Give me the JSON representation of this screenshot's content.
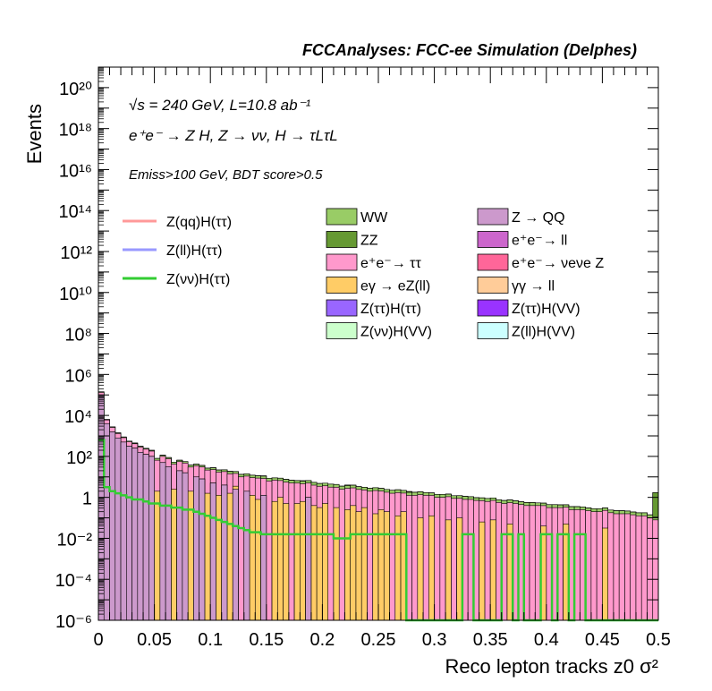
{
  "header_title": "FCCAnalyses: FCC-ee Simulation (Delphes)",
  "annotations": {
    "line1": "√s = 240 GeV, L=10.8 ab⁻¹",
    "line2": "e⁺e⁻ → Z H, Z → νν, H → τLτL",
    "line3": "Emiss>100 GeV, BDT score>0.5"
  },
  "legend": {
    "signals": [
      {
        "label": "Z(qq)H(ττ)",
        "color": "#ff9999"
      },
      {
        "label": "Z(ll)H(ττ)",
        "color": "#9999ff"
      },
      {
        "label": "Z(νν)H(ττ)",
        "color": "#33cc33"
      }
    ],
    "backgrounds_col1": [
      {
        "label": "WW",
        "color": "#99cc66"
      },
      {
        "label": "ZZ",
        "color": "#669933"
      },
      {
        "label": "e⁺e⁻→ ττ",
        "color": "#ff99cc"
      },
      {
        "label": "eγ → eZ(ll)",
        "color": "#ffcc66"
      },
      {
        "label": "Z(ττ)H(ττ)",
        "color": "#9966ff"
      },
      {
        "label": "Z(νν)H(VV)",
        "color": "#ccffcc"
      }
    ],
    "backgrounds_col2": [
      {
        "label": "Z → QQ",
        "color": "#cc99cc"
      },
      {
        "label": "e⁺e⁻→ ll",
        "color": "#cc66cc"
      },
      {
        "label": "e⁺e⁻→ νeνe Z",
        "color": "#ff6699"
      },
      {
        "label": "γγ → ll",
        "color": "#ffcc99"
      },
      {
        "label": "Z(ττ)H(VV)",
        "color": "#9933ff"
      },
      {
        "label": "Z(ll)H(VV)",
        "color": "#ccffff"
      }
    ]
  },
  "chart_data": {
    "type": "histogram-stacked",
    "xlabel": "Reco lepton tracks z0 σ²",
    "ylabel": "Events",
    "xlim": [
      0,
      0.5
    ],
    "ylim": [
      1e-06,
      1e+21
    ],
    "yscale": "log",
    "xticks": [
      "0",
      "0.05",
      "0.1",
      "0.15",
      "0.2",
      "0.25",
      "0.3",
      "0.35",
      "0.4",
      "0.45",
      "0.5"
    ],
    "yticks": [
      "10⁻⁶",
      "10⁻⁴",
      "10⁻²",
      "1",
      "10²",
      "10⁴",
      "10⁶",
      "10⁸",
      "10¹⁰",
      "10¹²",
      "10¹⁴",
      "10¹⁶",
      "10¹⁸",
      "10²⁰"
    ],
    "nbins": 100,
    "series": [
      {
        "name": "Z → QQ",
        "color": "#cc99cc",
        "values_log10": [
          5,
          3.6,
          3.2,
          2.9,
          2.7,
          2.5,
          2.4,
          2.2,
          2.1,
          2.0,
          -6,
          1.7,
          1.5,
          -6,
          1.3,
          1.2,
          -6,
          1.0,
          0.9,
          -6,
          0.7,
          -6,
          0.6,
          -6,
          0.4,
          -6,
          0.3,
          -6,
          -6,
          0.1,
          -6,
          -6,
          -6,
          -6,
          -6,
          -6,
          -6,
          0,
          -6,
          -6,
          -6,
          -6,
          -6,
          -6,
          -6,
          -6,
          -6,
          -6,
          -6,
          -6,
          -6,
          -6,
          -6,
          -6,
          -6,
          -6,
          -6,
          -6,
          -6,
          -6,
          -6,
          -6,
          -6,
          -6,
          -6,
          -6,
          -6,
          -6,
          -6,
          -6,
          -6,
          -6,
          -6,
          -6,
          -6,
          -6,
          -6,
          -6,
          -6,
          -6,
          -6,
          -6,
          -6,
          -6,
          -6,
          -6,
          -6,
          -6,
          -6,
          -6,
          -6,
          -6,
          -6,
          -6,
          -6,
          -6,
          -6,
          -6,
          -6,
          -6
        ]
      },
      {
        "name": "eγ → eZ(ll)",
        "color": "#ffcc66",
        "values_log10": [
          -6,
          -6,
          -6,
          -6,
          -6,
          0.3,
          0.5,
          -6,
          -6,
          0.2,
          0.3,
          -6,
          -6,
          0.4,
          -6,
          -6,
          0.3,
          -6,
          -6,
          0.2,
          -6,
          0.1,
          -6,
          0.2,
          0.0,
          -6,
          -6,
          0.1,
          -0.1,
          -6,
          -6,
          -0.2,
          0.0,
          -0.3,
          -6,
          -0.3,
          -0.2,
          -6,
          -0.4,
          -0.5,
          -0.3,
          -6,
          -0.5,
          -6,
          -0.6,
          -0.4,
          -0.7,
          -0.5,
          -6,
          -0.8,
          -0.6,
          -0.7,
          -6,
          -0.9,
          -0.7,
          -6,
          -6,
          -1.0,
          -6,
          -0.9,
          -6,
          -6,
          -1.1,
          -6,
          -1.0,
          -6,
          -6,
          -6,
          -1.2,
          -6,
          -1.1,
          -6,
          -6,
          -1.3,
          -6,
          -6,
          -6,
          -6,
          -6,
          -1.4,
          -6,
          -6,
          -6,
          -1.3,
          -6,
          -6,
          -6,
          -6,
          -6,
          -6,
          -1.5,
          -6,
          -6,
          -6,
          -6,
          -6,
          -6,
          -6,
          -6,
          -6
        ]
      },
      {
        "name": "e⁺e⁻→ ττ",
        "color": "#ff99cc",
        "values_log10": [
          4.5,
          3.3,
          3.0,
          2.7,
          2.5,
          2.3,
          2.2,
          2.1,
          2.0,
          1.9,
          1.8,
          1.7,
          1.65,
          1.6,
          1.55,
          1.5,
          1.45,
          1.4,
          1.35,
          1.3,
          1.25,
          1.2,
          1.15,
          1.1,
          1.05,
          1.0,
          0.95,
          0.9,
          0.9,
          0.85,
          0.8,
          0.8,
          0.75,
          0.7,
          0.7,
          0.65,
          0.6,
          0.6,
          0.55,
          0.5,
          0.5,
          0.5,
          0.45,
          0.4,
          0.4,
          0.4,
          0.35,
          0.3,
          0.3,
          0.3,
          0.25,
          0.2,
          0.2,
          0.2,
          0.15,
          0.1,
          0.1,
          0.1,
          0.1,
          0.05,
          0.0,
          0.0,
          0.0,
          -0.05,
          -0.1,
          -0.1,
          -0.1,
          -0.15,
          -0.2,
          -0.2,
          -0.2,
          -0.25,
          -0.3,
          -0.3,
          -0.3,
          -0.35,
          -0.4,
          -0.4,
          -0.4,
          -0.45,
          -0.5,
          -0.5,
          -0.5,
          -0.55,
          -0.6,
          -0.6,
          -0.6,
          -0.65,
          -0.7,
          -0.7,
          -0.7,
          -0.75,
          -0.8,
          -0.8,
          -0.8,
          -0.85,
          -0.9,
          -0.9,
          -1.0,
          -1.1
        ]
      },
      {
        "name": "WW",
        "color": "#99cc66",
        "values_log10": [
          4.0,
          2.5,
          2.2,
          2.0,
          1.8,
          1.6,
          1.5,
          1.4,
          1.3,
          1.2,
          1.15,
          1.1,
          1.05,
          1.0,
          0.95,
          0.9,
          0.85,
          0.8,
          0.75,
          0.7,
          0.7,
          0.65,
          0.6,
          0.6,
          0.55,
          0.5,
          0.5,
          0.45,
          0.4,
          0.4,
          0.35,
          0.3,
          0.3,
          0.3,
          0.25,
          0.2,
          0.2,
          0.2,
          0.15,
          0.1,
          0.1,
          0.1,
          0.05,
          0.0,
          0.0,
          0.0,
          -0.05,
          -0.1,
          -0.1,
          -0.1,
          -0.15,
          -0.2,
          -0.2,
          -0.2,
          -0.25,
          -0.3,
          -0.3,
          -0.3,
          -0.35,
          -0.4,
          -0.4,
          -0.4,
          -0.45,
          -0.5,
          -0.5,
          -0.5,
          -0.55,
          -0.6,
          -0.6,
          -0.6,
          -0.65,
          -0.7,
          -0.7,
          -0.7,
          -0.75,
          -0.8,
          -0.8,
          -0.8,
          -0.85,
          -0.9,
          -0.9,
          -0.9,
          -0.95,
          -1.0,
          -1.0,
          -1.0,
          -1.05,
          -1.1,
          -1.1,
          -1.1,
          -1.15,
          -1.2,
          -1.2,
          -1.2,
          -1.25,
          -1.3,
          -1.3,
          -1.3,
          -1.4,
          -1.5
        ]
      },
      {
        "name": "ZZ",
        "color": "#669933",
        "values_log10": [
          2.0,
          1.0,
          0.7,
          -6,
          0.5,
          -6,
          0.3,
          -6,
          0.1,
          -6,
          -6,
          -0.1,
          -6,
          -6,
          -0.2,
          -6,
          -6,
          -6,
          -0.3,
          -6,
          -6,
          -6,
          -6,
          -0.4,
          -6,
          -6,
          -6,
          -6,
          -6,
          -0.5,
          -6,
          -6,
          -6,
          -6,
          -6,
          -6,
          -0.6,
          -6,
          -6,
          -6,
          -6,
          -6,
          -6,
          -6,
          -0.7,
          -6,
          -6,
          -6,
          -6,
          -6,
          -6,
          -6,
          -6,
          -6,
          -6,
          -0.8,
          -6,
          -6,
          -6,
          -6,
          -6,
          -6,
          -6,
          -6,
          -6,
          -6,
          -6,
          -6,
          -6,
          -6,
          -6,
          -6,
          -6,
          -6,
          -6,
          -6,
          -6,
          -6,
          -6,
          -6,
          -6,
          -6,
          -6,
          -6,
          -6,
          -6,
          -6,
          -6,
          -6,
          -6,
          -6,
          -6,
          -6,
          -6,
          -6,
          -6,
          -6,
          -6,
          -6,
          0.2
        ]
      },
      {
        "name": "Z(ττ)H(ττ)",
        "color": "#9966ff",
        "values_log10": [
          -1.0,
          -6,
          -3.5,
          -6,
          -6,
          -6,
          -6,
          -6,
          -6,
          -6,
          -6,
          -6,
          -6,
          -6,
          -6,
          -6,
          -6,
          -6,
          -6,
          -6,
          -6,
          -6,
          -6,
          -6,
          -6,
          -6,
          -6,
          -6,
          -6,
          -6,
          -6,
          -6,
          -6,
          -6,
          -6,
          -6,
          -6,
          -6,
          -6,
          -6,
          -6,
          -6,
          -6,
          -6,
          -6,
          -6,
          -6,
          -6,
          -6,
          -6,
          -6,
          -6,
          -6,
          -6,
          -6,
          -6,
          -6,
          -6,
          -6,
          -6,
          -6,
          -6,
          -6,
          -6,
          -6,
          -6,
          -6,
          -6,
          -6,
          -6,
          -6,
          -6,
          -6,
          -6,
          -6,
          -6,
          -6,
          -6,
          -6,
          -6,
          -6,
          -6,
          -6,
          -6,
          -6,
          -6,
          -6,
          -6,
          -6,
          -6,
          -6,
          -6,
          -6,
          -6,
          -6,
          -6,
          -6,
          -6,
          -6,
          -6
        ]
      },
      {
        "name": "Z(ll)H(VV)",
        "color": "#ccffff",
        "values_log10": [
          -6,
          -6,
          -6,
          -6,
          -6,
          -4.0,
          -6,
          -6,
          -6,
          -6,
          -6,
          -6,
          -6,
          -6,
          -6,
          -6,
          -6,
          -6,
          -6,
          -6,
          -6,
          -6,
          -6,
          -6,
          -6,
          -6,
          -6,
          -6,
          -6,
          -6,
          -6,
          -6,
          -6,
          -6,
          -6,
          -6,
          -6,
          -6,
          -6,
          -6,
          -6,
          -6,
          -6,
          -6,
          -6,
          -6,
          -6,
          -6,
          -6,
          -6,
          -6,
          -6,
          -6,
          -6,
          -6,
          -6,
          -6,
          -6,
          -6,
          -6,
          -6,
          -6,
          -6,
          -6,
          -6,
          -6,
          -6,
          -6,
          -6,
          -6,
          -6,
          -6,
          -6,
          -6,
          -6,
          -6,
          -6,
          -6,
          -6,
          -6,
          -6,
          -6,
          -6,
          -6,
          -6,
          -6,
          -6,
          -6,
          -6,
          -6,
          -6,
          -6,
          -6,
          -6,
          -6,
          -6,
          -6,
          -6,
          -6,
          -6
        ]
      }
    ],
    "signal_line": {
      "name": "Z(νν)H(ττ)",
      "color": "#33cc33",
      "values_log10": [
        2.8,
        0.5,
        0.3,
        0.2,
        0.1,
        0.0,
        -0.1,
        -0.1,
        -0.2,
        -0.3,
        -0.3,
        -0.4,
        -0.4,
        -0.5,
        -0.5,
        -0.6,
        -0.6,
        -0.7,
        -0.8,
        -0.9,
        -1.0,
        -1.1,
        -1.2,
        -1.3,
        -1.4,
        -1.5,
        -1.6,
        -1.7,
        -1.7,
        -1.8,
        -1.8,
        -1.8,
        -1.8,
        -1.8,
        -1.8,
        -1.8,
        -1.8,
        -1.8,
        -1.8,
        -1.8,
        -1.8,
        -1.8,
        -2.0,
        -2.0,
        -2.0,
        -1.8,
        -1.8,
        -1.8,
        -1.8,
        -1.8,
        -1.8,
        -1.8,
        -1.8,
        -1.8,
        -1.8,
        -6,
        -6,
        -6,
        -6,
        -6,
        -6,
        -6,
        -6,
        -6,
        -6,
        -1.8,
        -1.8,
        -6,
        -6,
        -6,
        -6,
        -6,
        -1.8,
        -1.8,
        -6,
        -1.8,
        -6,
        -6,
        -6,
        -1.8,
        -1.8,
        -6,
        -1.8,
        -1.8,
        -6,
        -1.8,
        -1.8,
        -6,
        -6,
        -6,
        -6,
        -6,
        -6,
        -6,
        -6,
        -6,
        -6,
        -6,
        -6,
        -6
      ]
    }
  }
}
